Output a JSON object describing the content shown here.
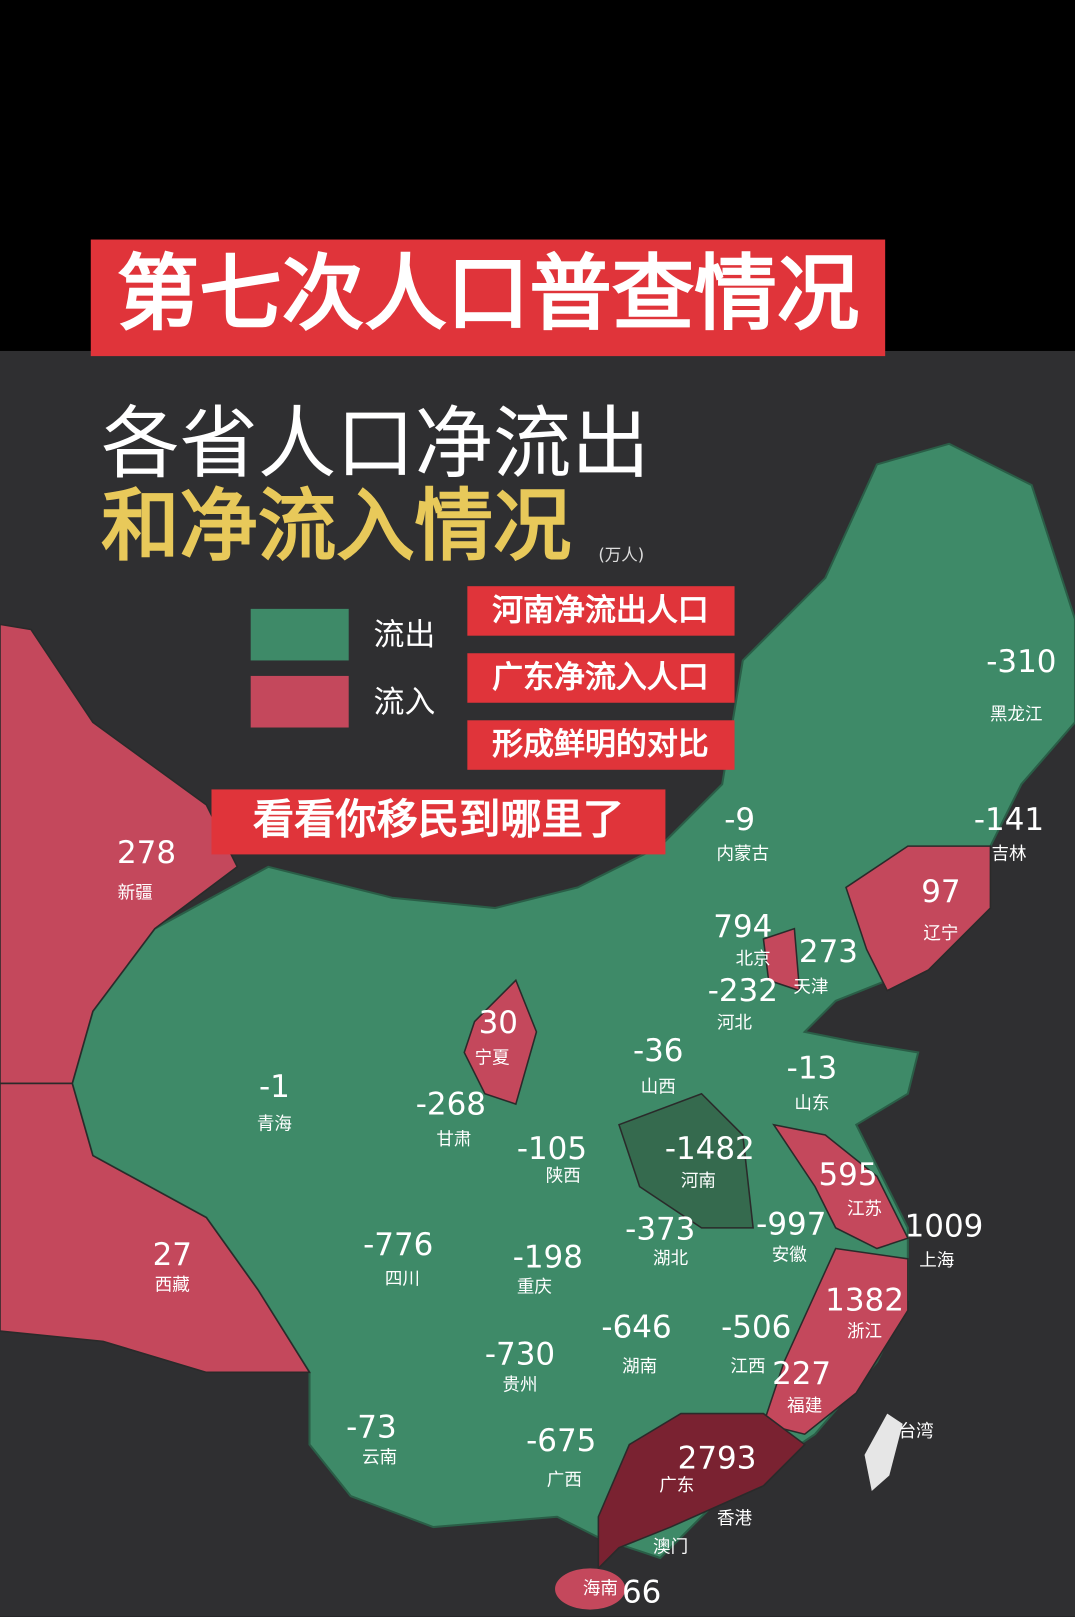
{
  "header": {
    "title": "第七次人口普查情况"
  },
  "heading": {
    "line1": "各省人口净流出",
    "line2": "和净流入情况",
    "unit": "(万人)"
  },
  "legend": [
    {
      "label": "流出",
      "color": "#3e8a68"
    },
    {
      "label": "流入",
      "color": "#c4485c"
    }
  ],
  "notes": [
    "河南净流出人口",
    "广东净流入人口",
    "形成鲜明的对比"
  ],
  "callout": "看看你移民到哪里了",
  "provinces": [
    {
      "name": "黑龙江",
      "value": -310
    },
    {
      "name": "吉林",
      "value": -141
    },
    {
      "name": "辽宁",
      "value": 97
    },
    {
      "name": "内蒙古",
      "value": -9
    },
    {
      "name": "北京",
      "value": 794
    },
    {
      "name": "天津",
      "value": 273
    },
    {
      "name": "河北",
      "value": -232
    },
    {
      "name": "宁夏",
      "value": 30
    },
    {
      "name": "山西",
      "value": -36
    },
    {
      "name": "山东",
      "value": -13
    },
    {
      "name": "青海",
      "value": -1
    },
    {
      "name": "甘肃",
      "value": -268
    },
    {
      "name": "陕西",
      "value": -105
    },
    {
      "name": "河南",
      "value": -1482,
      "color": "#356a4e"
    },
    {
      "name": "江苏",
      "value": 595
    },
    {
      "name": "上海",
      "value": 1009
    },
    {
      "name": "新疆",
      "value": 278
    },
    {
      "name": "西藏",
      "value": 27
    },
    {
      "name": "四川",
      "value": -776
    },
    {
      "name": "重庆",
      "value": -198
    },
    {
      "name": "湖北",
      "value": -373
    },
    {
      "name": "安徽",
      "value": -997
    },
    {
      "name": "浙江",
      "value": 1382
    },
    {
      "name": "湖南",
      "value": -646
    },
    {
      "name": "江西",
      "value": -506
    },
    {
      "name": "贵州",
      "value": -730
    },
    {
      "name": "福建",
      "value": 227
    },
    {
      "name": "云南",
      "value": -73
    },
    {
      "name": "广西",
      "value": -675
    },
    {
      "name": "广东",
      "value": 2793,
      "color": "#7a2231"
    },
    {
      "name": "海南",
      "value": 66
    }
  ],
  "places": [
    "台湾",
    "香港",
    "澳门"
  ]
}
